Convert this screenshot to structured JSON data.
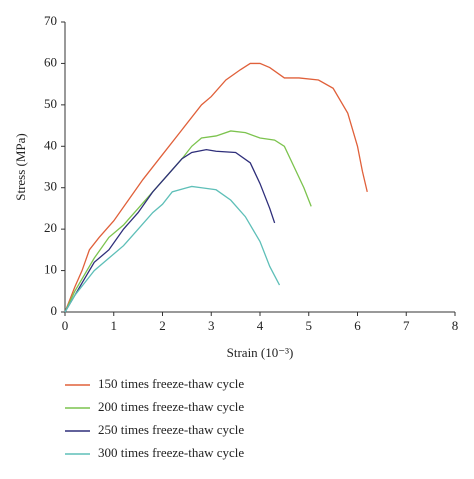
{
  "chart_data": {
    "type": "line",
    "x_label": "Strain (10⁻³)",
    "y_label": "Stress (MPa)",
    "xlim": [
      0,
      8
    ],
    "xticks": [
      0,
      1,
      2,
      3,
      4,
      5,
      6,
      7,
      8
    ],
    "ylim": [
      0,
      70
    ],
    "yticks": [
      0,
      10,
      20,
      30,
      40,
      50,
      60,
      70
    ],
    "series": [
      {
        "name": "150 times freeze-thaw cycle",
        "color": "#e0603a",
        "x": [
          0,
          0.1,
          0.2,
          0.35,
          0.5,
          0.7,
          1,
          1.3,
          1.6,
          2,
          2.4,
          2.8,
          3,
          3.3,
          3.6,
          3.8,
          4,
          4.2,
          4.5,
          4.8,
          5.2,
          5.5,
          5.8,
          6,
          6.1,
          6.2
        ],
        "values": [
          0,
          3,
          6,
          10,
          15,
          18,
          22,
          27,
          32,
          38,
          44,
          50,
          52,
          56,
          58.5,
          60,
          60,
          59,
          56.5,
          56.5,
          56,
          54,
          48,
          40,
          34,
          29
        ]
      },
      {
        "name": "200 times freeze-thaw cycle",
        "color": "#7cc34e",
        "x": [
          0,
          0.2,
          0.4,
          0.6,
          0.9,
          1.2,
          1.5,
          1.8,
          2.1,
          2.4,
          2.6,
          2.8,
          3.1,
          3.4,
          3.7,
          4,
          4.3,
          4.5,
          4.7,
          4.9,
          5.05
        ],
        "values": [
          0,
          5,
          9,
          13,
          18,
          21,
          25,
          29,
          33,
          37,
          40,
          42,
          42.5,
          43.7,
          43.3,
          42,
          41.5,
          40,
          35,
          30,
          25.5
        ]
      },
      {
        "name": "250 times freeze-thaw cycle",
        "color": "#2e2e7a",
        "x": [
          0,
          0.2,
          0.4,
          0.6,
          0.9,
          1.2,
          1.5,
          1.8,
          2.1,
          2.4,
          2.6,
          2.9,
          3.1,
          3.5,
          3.8,
          4,
          4.2,
          4.3
        ],
        "values": [
          0,
          4,
          8,
          12,
          15,
          20,
          24,
          29,
          33,
          37,
          38.5,
          39.2,
          38.8,
          38.5,
          36,
          31,
          25,
          21.5
        ]
      },
      {
        "name": "300 times freeze-thaw cycle",
        "color": "#5ebfb8",
        "x": [
          0,
          0.2,
          0.4,
          0.6,
          0.9,
          1.2,
          1.5,
          1.8,
          2,
          2.2,
          2.5,
          2.6,
          2.8,
          3.1,
          3.4,
          3.7,
          4,
          4.2,
          4.4
        ],
        "values": [
          0,
          4,
          7,
          10,
          13,
          16,
          20,
          24,
          26,
          29,
          30,
          30.3,
          30,
          29.5,
          27,
          23,
          17,
          11,
          6.5
        ]
      }
    ]
  }
}
